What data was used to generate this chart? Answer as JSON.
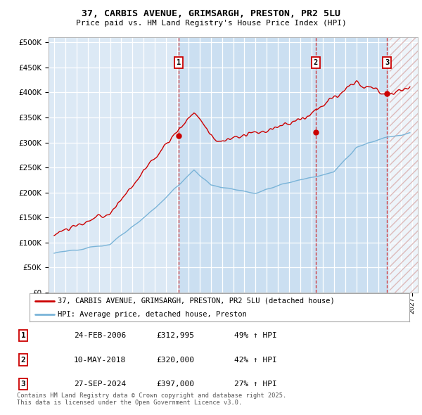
{
  "title_line1": "37, CARBIS AVENUE, GRIMSARGH, PRESTON, PR2 5LU",
  "title_line2": "Price paid vs. HM Land Registry's House Price Index (HPI)",
  "ytick_values": [
    0,
    50000,
    100000,
    150000,
    200000,
    250000,
    300000,
    350000,
    400000,
    450000,
    500000
  ],
  "xlim_start": 1994.5,
  "xlim_end": 2027.5,
  "ylim": [
    0,
    510000
  ],
  "sale_dates": [
    2006.14,
    2018.36,
    2024.74
  ],
  "sale_prices": [
    312995,
    320000,
    397000
  ],
  "sale_labels": [
    "1",
    "2",
    "3"
  ],
  "sale_date_strs": [
    "24-FEB-2006",
    "10-MAY-2018",
    "27-SEP-2024"
  ],
  "sale_price_strs": [
    "£312,995",
    "£320,000",
    "£397,000"
  ],
  "sale_hpi_strs": [
    "49% ↑ HPI",
    "42% ↑ HPI",
    "27% ↑ HPI"
  ],
  "hpi_color": "#7ab4d8",
  "price_color": "#cc0000",
  "background_color": "#dce9f5",
  "fill_color": "#c5dcf0",
  "legend_label_red": "37, CARBIS AVENUE, GRIMSARGH, PRESTON, PR2 5LU (detached house)",
  "legend_label_blue": "HPI: Average price, detached house, Preston",
  "footnote": "Contains HM Land Registry data © Crown copyright and database right 2025.\nThis data is licensed under the Open Government Licence v3.0."
}
